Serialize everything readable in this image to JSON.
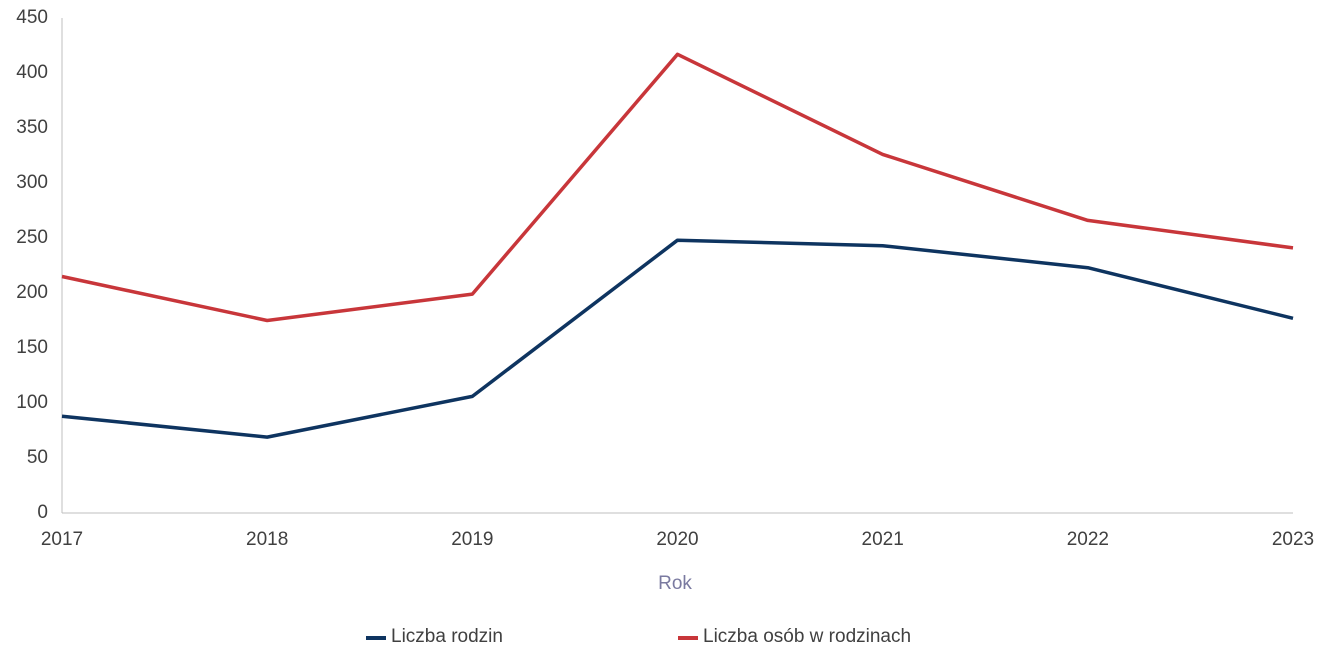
{
  "chart_data": {
    "type": "line",
    "x_label": "Rok",
    "x": [
      2017,
      2018,
      2019,
      2020,
      2021,
      2022,
      2023
    ],
    "xlim": [
      2017,
      2023
    ],
    "xticks": [
      2017,
      2018,
      2019,
      2020,
      2021,
      2022,
      2023
    ],
    "ylim": [
      0,
      450
    ],
    "yticks": [
      0,
      50,
      100,
      150,
      200,
      250,
      300,
      350,
      400,
      450
    ],
    "grid": false,
    "legend": "bottom",
    "series": [
      {
        "name": "Liczba rodzin",
        "color": "#0e3460",
        "values": [
          88,
          69,
          106,
          248,
          243,
          223,
          177
        ]
      },
      {
        "name": "Liczba osób w rodzinach",
        "color": "#c8363a",
        "values": [
          215,
          175,
          199,
          417,
          326,
          266,
          241
        ]
      }
    ]
  }
}
